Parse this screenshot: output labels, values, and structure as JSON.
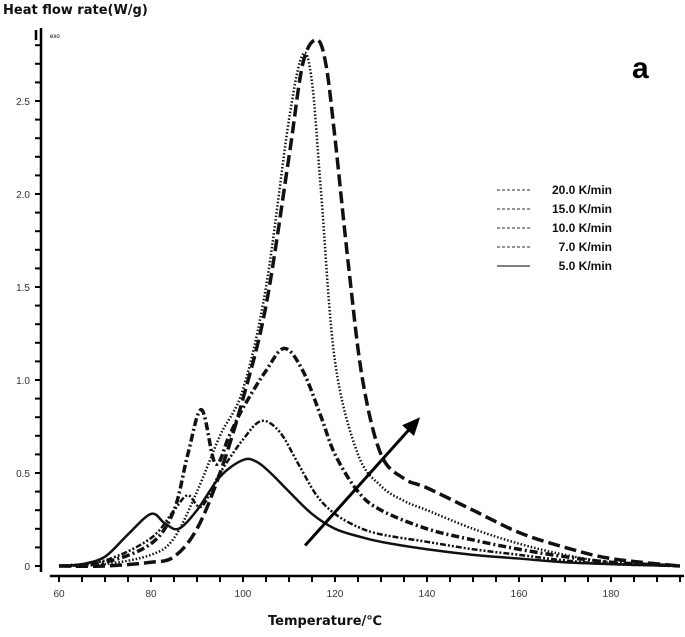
{
  "chart_data": {
    "type": "line",
    "title": "",
    "panel_label": "a",
    "ylabel": "Heat flow rate(W/g)",
    "xlabel": "Temperature/℃",
    "exo_marker": "exo",
    "xlim": [
      58,
      195
    ],
    "ylim": [
      -0.05,
      2.88
    ],
    "xticks": [
      60,
      80,
      100,
      120,
      140,
      160,
      180
    ],
    "yticks": [
      0,
      0.5,
      1.0,
      1.5,
      2.0,
      2.5
    ],
    "ytick_labels": [
      "0",
      "0.5",
      "1.0",
      "1.5",
      "2.0",
      "2.5"
    ],
    "grid": false,
    "legend_position": "right",
    "series": [
      {
        "name": "20.0 K/min",
        "style": "dashed",
        "x": [
          60,
          70,
          80,
          85,
          90,
          95,
          100,
          105,
          110,
          113,
          116,
          118,
          120,
          123,
          126,
          130,
          135,
          140,
          150,
          160,
          170,
          180,
          195
        ],
        "y": [
          0,
          0,
          0.02,
          0.05,
          0.2,
          0.5,
          0.9,
          1.4,
          2.2,
          2.7,
          2.83,
          2.7,
          2.3,
          1.6,
          1.0,
          0.6,
          0.47,
          0.42,
          0.3,
          0.18,
          0.1,
          0.04,
          0
        ]
      },
      {
        "name": "15.0 K/min",
        "style": "dotted",
        "x": [
          60,
          70,
          80,
          85,
          90,
          95,
          100,
          105,
          110,
          113,
          115,
          117,
          120,
          125,
          130,
          135,
          140,
          150,
          160,
          170,
          180,
          195
        ],
        "y": [
          0,
          0.01,
          0.06,
          0.15,
          0.4,
          0.7,
          0.95,
          1.5,
          2.4,
          2.75,
          2.6,
          2.0,
          1.1,
          0.6,
          0.43,
          0.35,
          0.3,
          0.2,
          0.12,
          0.06,
          0.02,
          0
        ]
      },
      {
        "name": "10.0 K/min",
        "style": "dashdot",
        "x": [
          60,
          70,
          80,
          85,
          88,
          91,
          94,
          97,
          100,
          105,
          109,
          113,
          117,
          120,
          125,
          130,
          140,
          150,
          160,
          170,
          180,
          195
        ],
        "y": [
          0,
          0.02,
          0.12,
          0.3,
          0.6,
          0.84,
          0.55,
          0.7,
          0.85,
          1.05,
          1.17,
          1.05,
          0.8,
          0.6,
          0.4,
          0.3,
          0.2,
          0.14,
          0.09,
          0.05,
          0.02,
          0
        ]
      },
      {
        "name": "7.0 K/min",
        "style": "dashdotdot",
        "x": [
          60,
          70,
          80,
          85,
          88,
          91,
          95,
          100,
          104,
          108,
          112,
          116,
          120,
          125,
          130,
          140,
          150,
          160,
          170,
          180,
          195
        ],
        "y": [
          0,
          0.03,
          0.15,
          0.3,
          0.38,
          0.32,
          0.5,
          0.68,
          0.78,
          0.72,
          0.55,
          0.38,
          0.28,
          0.21,
          0.17,
          0.13,
          0.09,
          0.06,
          0.03,
          0.01,
          0
        ]
      },
      {
        "name": "5.0 K/min",
        "style": "solid",
        "x": [
          60,
          65,
          70,
          75,
          80,
          83,
          86,
          90,
          95,
          100,
          103,
          106,
          110,
          115,
          120,
          125,
          130,
          140,
          150,
          160,
          170,
          180,
          195
        ],
        "y": [
          0,
          0.01,
          0.05,
          0.17,
          0.28,
          0.23,
          0.2,
          0.3,
          0.48,
          0.57,
          0.56,
          0.5,
          0.4,
          0.28,
          0.2,
          0.16,
          0.13,
          0.09,
          0.06,
          0.04,
          0.02,
          0.01,
          0
        ]
      }
    ],
    "annotations": [
      {
        "type": "arrow",
        "from": [
          113.5,
          0.11
        ],
        "to": [
          138.5,
          0.8
        ]
      }
    ]
  }
}
